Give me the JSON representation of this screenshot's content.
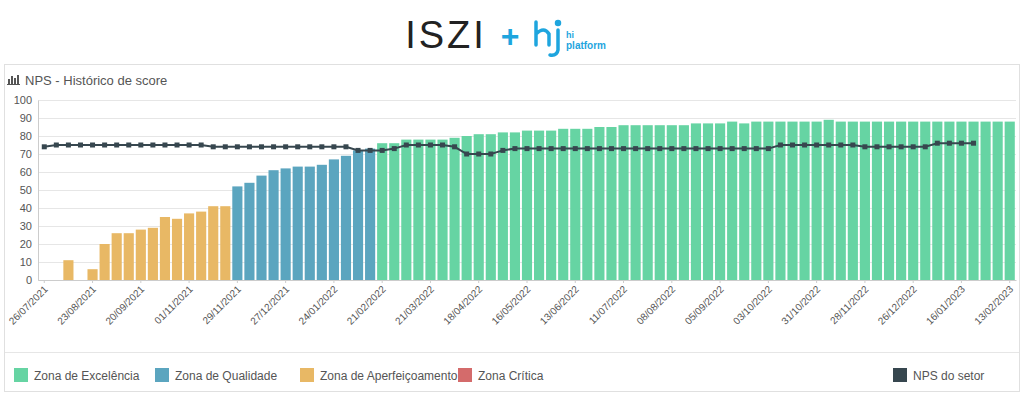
{
  "header": {
    "logo_left": "ISZI",
    "plus": "+",
    "logo_right": [
      "hi",
      "platform"
    ]
  },
  "chart_data": {
    "type": "bar",
    "title": "NPS - Histórico de score",
    "categories": [
      "26/07/2021",
      null,
      null,
      null,
      "23/08/2021",
      null,
      null,
      null,
      "20/09/2021",
      null,
      null,
      null,
      "01/11/2021",
      null,
      null,
      null,
      "29/11/2021",
      null,
      null,
      null,
      "27/12/2021",
      null,
      null,
      null,
      "24/01/2022",
      null,
      null,
      null,
      "21/02/2022",
      null,
      null,
      null,
      "21/03/2022",
      null,
      null,
      null,
      "18/04/2022",
      null,
      null,
      null,
      "16/05/2022",
      null,
      null,
      null,
      "13/06/2022",
      null,
      null,
      null,
      "11/07/2022",
      null,
      null,
      null,
      "08/08/2022",
      null,
      null,
      null,
      "05/09/2022",
      null,
      null,
      null,
      "03/10/2022",
      null,
      null,
      null,
      "31/10/2022",
      null,
      null,
      null,
      "28/11/2022",
      null,
      null,
      null,
      "26/12/2022",
      null,
      null,
      null,
      "16/01/2023",
      null,
      null,
      null,
      "13/02/2023"
    ],
    "series": [
      {
        "name": "Zona de Excelência",
        "type": "bar",
        "color": "#66d4a3",
        "values": [
          null,
          null,
          null,
          null,
          null,
          null,
          null,
          null,
          null,
          null,
          null,
          null,
          null,
          null,
          null,
          null,
          null,
          null,
          null,
          null,
          null,
          null,
          null,
          null,
          null,
          null,
          null,
          null,
          76,
          76,
          78,
          78,
          78,
          78,
          79,
          80,
          81,
          81,
          82,
          82,
          83,
          83,
          83,
          84,
          84,
          84,
          85,
          85,
          86,
          86,
          86,
          86,
          86,
          86,
          87,
          87,
          87,
          88,
          87,
          88,
          88,
          88,
          88,
          88,
          88,
          89,
          88,
          88,
          88,
          88,
          88,
          88,
          88,
          88,
          88,
          88,
          88,
          88,
          88,
          88,
          88
        ]
      },
      {
        "name": "Zona de Qualidade",
        "type": "bar",
        "color": "#5ba5bf",
        "values": [
          null,
          null,
          null,
          null,
          null,
          null,
          null,
          null,
          null,
          null,
          null,
          null,
          null,
          null,
          null,
          null,
          52,
          54,
          58,
          61,
          62,
          63,
          63,
          64,
          67,
          69,
          72,
          73,
          null,
          null,
          null,
          null,
          null,
          null,
          null,
          null,
          null,
          null,
          null,
          null,
          null,
          null,
          null,
          null,
          null,
          null,
          null,
          null,
          null,
          null,
          null,
          null,
          null,
          null,
          null,
          null,
          null,
          null,
          null,
          null,
          null,
          null,
          null,
          null,
          null,
          null,
          null,
          null,
          null,
          null,
          null,
          null,
          null,
          null,
          null,
          null,
          null,
          null,
          null,
          null,
          null
        ]
      },
      {
        "name": "Zona de Aperfeiçoamento",
        "type": "bar",
        "color": "#e8b865",
        "values": [
          null,
          null,
          11,
          null,
          6,
          20,
          26,
          26,
          28,
          29,
          35,
          34,
          37,
          38,
          41,
          41,
          null,
          null,
          null,
          null,
          null,
          null,
          null,
          null,
          null,
          null,
          null,
          null,
          null,
          null,
          null,
          null,
          null,
          null,
          null,
          null,
          null,
          null,
          null,
          null,
          null,
          null,
          null,
          null,
          null,
          null,
          null,
          null,
          null,
          null,
          null,
          null,
          null,
          null,
          null,
          null,
          null,
          null,
          null,
          null,
          null,
          null,
          null,
          null,
          null,
          null,
          null,
          null,
          null,
          null,
          null,
          null,
          null,
          null,
          null,
          null,
          null,
          null,
          null,
          null,
          null
        ]
      },
      {
        "name": "Zona Crítica",
        "type": "bar",
        "color": "#d46b6b",
        "values": [
          null,
          null,
          null,
          null,
          null,
          null,
          null,
          null,
          null,
          null,
          null,
          null,
          null,
          null,
          null,
          null,
          null,
          null,
          null,
          null,
          null,
          null,
          null,
          null,
          null,
          null,
          null,
          null,
          null,
          null,
          null,
          null,
          null,
          null,
          null,
          null,
          null,
          null,
          null,
          null,
          null,
          null,
          null,
          null,
          null,
          null,
          null,
          null,
          null,
          null,
          null,
          null,
          null,
          null,
          null,
          null,
          null,
          null,
          null,
          null,
          null,
          null,
          null,
          null,
          null,
          null,
          null,
          null,
          null,
          null,
          null,
          null,
          null,
          null,
          null,
          null,
          null,
          null,
          null,
          null,
          null
        ]
      },
      {
        "name": "NPS do setor",
        "type": "line",
        "color": "#37474f",
        "marker": "square",
        "line_style": "solid",
        "values": [
          74,
          75,
          75,
          75,
          75,
          75,
          75,
          75,
          75,
          75,
          75,
          75,
          75,
          75,
          74,
          74,
          74,
          74,
          74,
          74,
          74,
          74,
          74,
          74,
          74,
          74,
          72,
          72,
          72,
          73,
          75,
          75,
          75,
          75,
          74,
          70,
          70,
          70,
          72,
          73,
          73,
          73,
          73,
          73,
          73,
          73,
          73,
          73,
          73,
          73,
          73,
          73,
          73,
          73,
          73,
          73,
          73,
          73,
          73,
          73,
          73,
          75,
          75,
          75,
          75,
          75,
          75,
          75,
          74,
          74,
          74,
          74,
          74,
          74,
          76,
          76,
          76,
          76,
          null,
          null,
          null
        ]
      }
    ],
    "ylim": [
      0,
      100
    ],
    "yticks": [
      0,
      10,
      20,
      30,
      40,
      50,
      60,
      70,
      80,
      90,
      100
    ],
    "grid": true,
    "stacked": true,
    "legend": "bottom"
  }
}
